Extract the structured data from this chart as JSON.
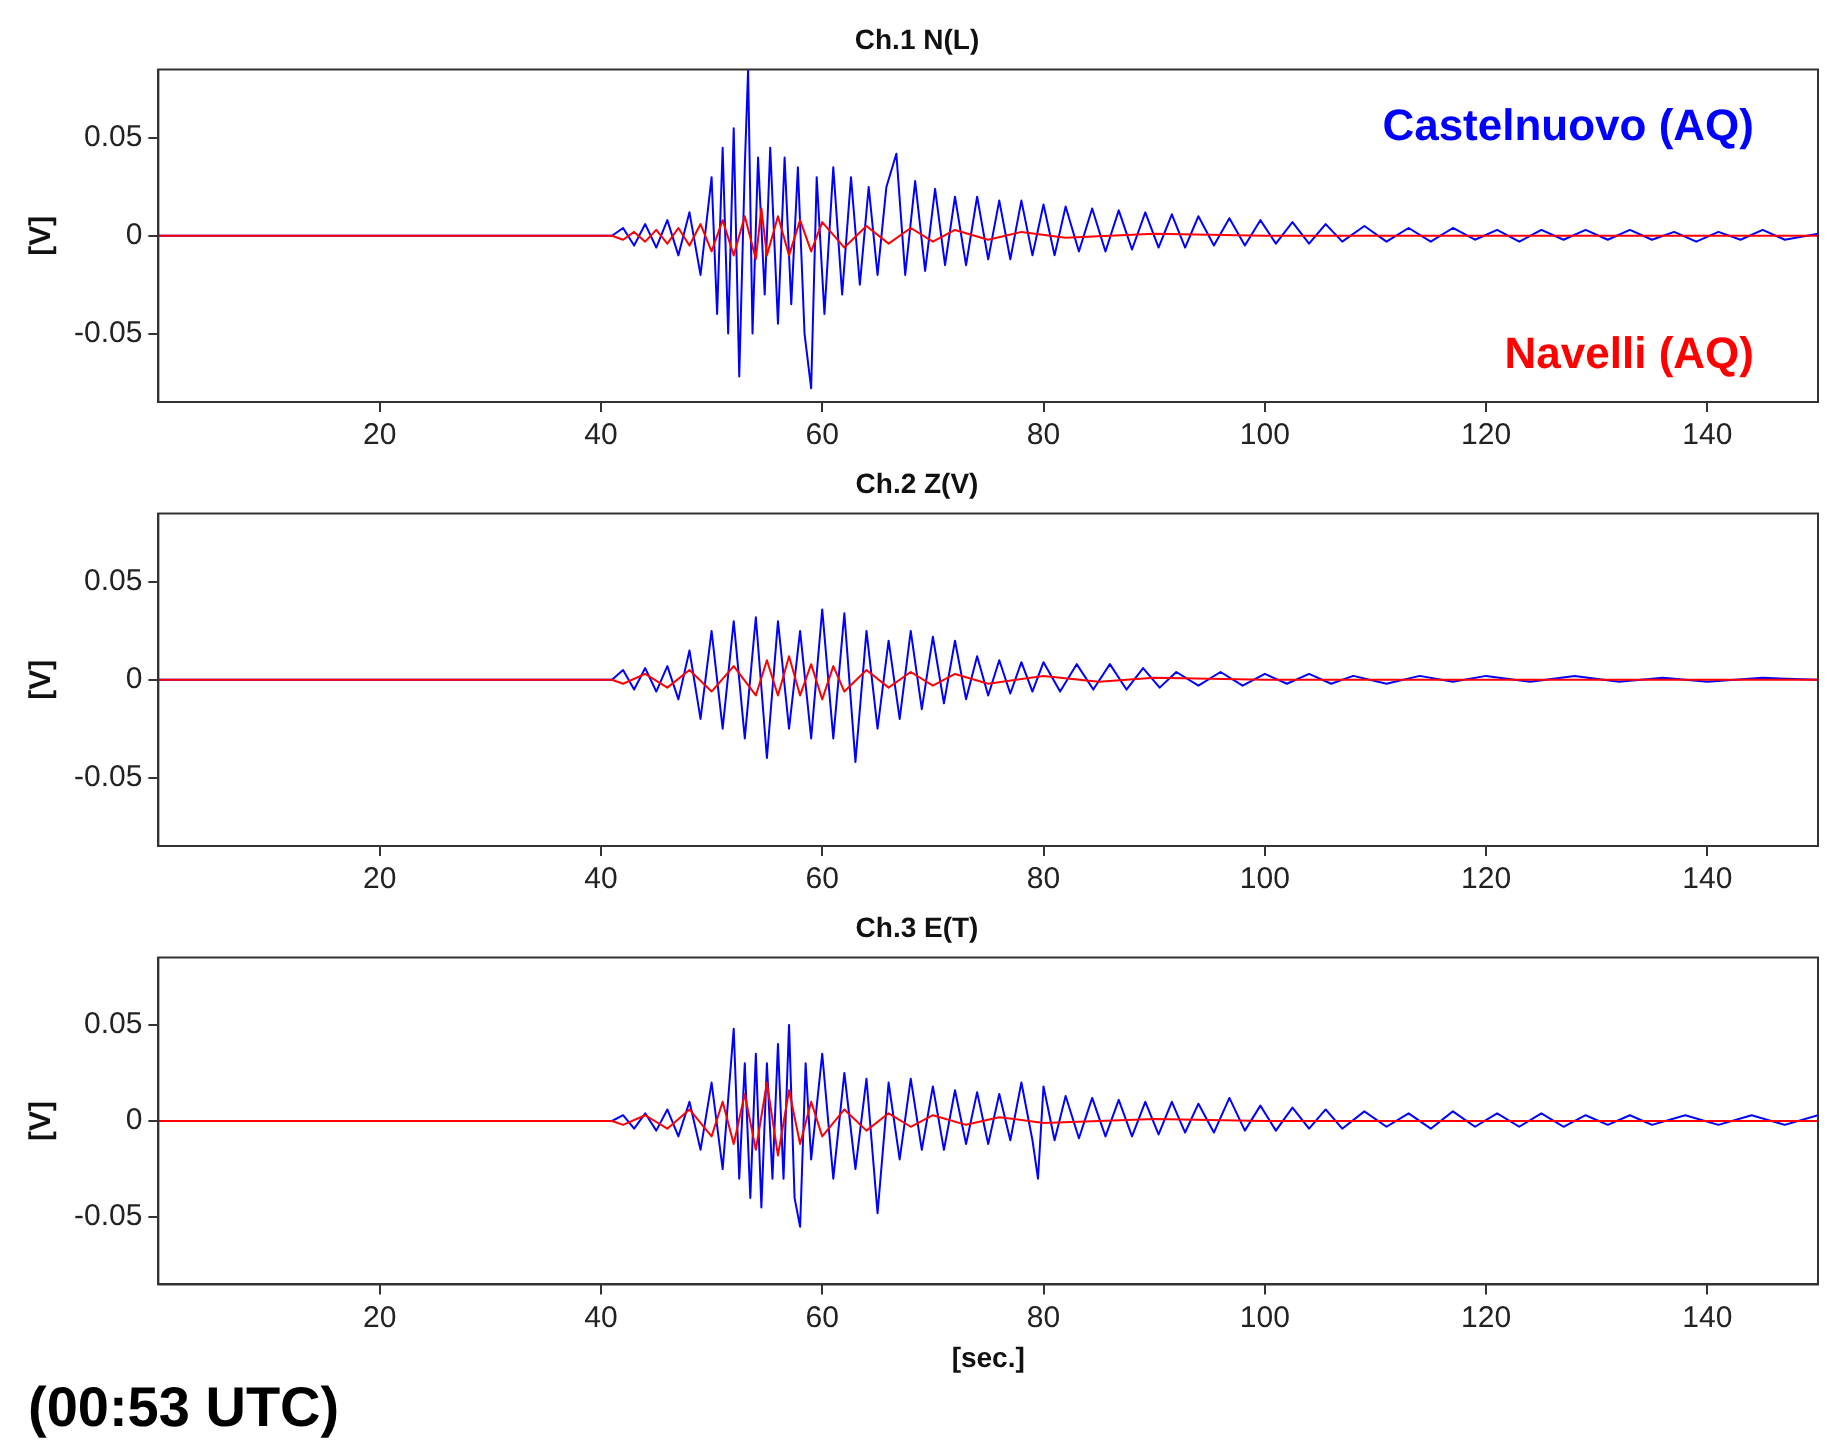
{
  "chart_data": [
    {
      "type": "line",
      "title": "Ch.1 N(L)",
      "ylabel": "[V]",
      "xlim": [
        0,
        150
      ],
      "ylim": [
        -0.085,
        0.085
      ],
      "xticks": [
        20,
        40,
        60,
        80,
        100,
        120,
        140
      ],
      "yticks": [
        -0.05,
        0,
        0.05
      ],
      "grid": false,
      "legend": false,
      "marker": "none",
      "line_style": "solid",
      "series": [
        {
          "name": "Castelnuovo (AQ)",
          "color": "#0000ff",
          "x": [
            0,
            41,
            42,
            43,
            44,
            45,
            46,
            47,
            48,
            49,
            50,
            50.5,
            51,
            51.5,
            52,
            52.5,
            53,
            53.3,
            53.7,
            54.2,
            54.8,
            55.3,
            56,
            56.6,
            57.2,
            57.8,
            58.4,
            59,
            59.5,
            60.2,
            61,
            61.8,
            62.6,
            63.4,
            64.2,
            65,
            65.8,
            66.7,
            67.5,
            68.4,
            69.3,
            70.2,
            71.1,
            72,
            73,
            74,
            75,
            76,
            77,
            78,
            79,
            80,
            81,
            82,
            83.2,
            84.4,
            85.6,
            86.8,
            88,
            89.2,
            90.4,
            91.6,
            92.8,
            94,
            95.4,
            96.8,
            98.2,
            99.6,
            101,
            102.5,
            104,
            105.5,
            107,
            109,
            111,
            113,
            115,
            117,
            119,
            121,
            123,
            125,
            127,
            129,
            131,
            133,
            135,
            137,
            139,
            141,
            143,
            145,
            147,
            150
          ],
          "values": [
            0,
            0,
            0.004,
            -0.005,
            0.006,
            -0.006,
            0.008,
            -0.01,
            0.012,
            -0.02,
            0.03,
            -0.04,
            0.045,
            -0.05,
            0.055,
            -0.072,
            0.035,
            0.085,
            -0.05,
            0.04,
            -0.03,
            0.045,
            -0.045,
            0.04,
            -0.035,
            0.035,
            -0.05,
            -0.078,
            0.03,
            -0.04,
            0.035,
            -0.03,
            0.03,
            -0.025,
            0.025,
            -0.02,
            0.025,
            0.042,
            -0.02,
            0.028,
            -0.018,
            0.024,
            -0.015,
            0.02,
            -0.015,
            0.02,
            -0.012,
            0.018,
            -0.012,
            0.018,
            -0.01,
            0.016,
            -0.01,
            0.015,
            -0.008,
            0.014,
            -0.008,
            0.013,
            -0.007,
            0.012,
            -0.006,
            0.011,
            -0.006,
            0.01,
            -0.005,
            0.009,
            -0.005,
            0.008,
            -0.004,
            0.007,
            -0.004,
            0.006,
            -0.003,
            0.005,
            -0.003,
            0.004,
            -0.003,
            0.004,
            -0.002,
            0.003,
            -0.003,
            0.003,
            -0.002,
            0.003,
            -0.002,
            0.003,
            -0.002,
            0.002,
            -0.003,
            0.002,
            -0.002,
            0.003,
            -0.002,
            0.001
          ]
        },
        {
          "name": "Navelli (AQ)",
          "color": "#ff0000",
          "x": [
            0,
            41,
            42,
            43,
            44,
            45,
            46,
            47,
            48,
            49,
            50,
            51,
            52,
            53,
            54,
            54.5,
            55,
            56,
            57,
            58,
            59,
            60,
            62,
            64,
            66,
            68,
            70,
            72,
            75,
            78,
            82,
            90,
            100,
            150
          ],
          "values": [
            0,
            0,
            -0.002,
            0.002,
            -0.003,
            0.003,
            -0.004,
            0.004,
            -0.005,
            0.006,
            -0.008,
            0.008,
            -0.01,
            0.01,
            -0.012,
            0.014,
            -0.01,
            0.01,
            -0.01,
            0.008,
            -0.008,
            0.007,
            -0.006,
            0.005,
            -0.004,
            0.004,
            -0.003,
            0.003,
            -0.002,
            0.002,
            -0.001,
            0.001,
            0,
            0
          ]
        }
      ]
    },
    {
      "type": "line",
      "title": "Ch.2 Z(V)",
      "ylabel": "[V]",
      "xlim": [
        0,
        150
      ],
      "ylim": [
        -0.085,
        0.085
      ],
      "xticks": [
        20,
        40,
        60,
        80,
        100,
        120,
        140
      ],
      "yticks": [
        -0.05,
        0,
        0.05
      ],
      "grid": false,
      "legend": false,
      "marker": "none",
      "line_style": "solid",
      "series": [
        {
          "color": "#0000ff",
          "x": [
            0,
            41,
            42,
            43,
            44,
            45,
            46,
            47,
            48,
            49,
            50,
            51,
            52,
            53,
            54,
            55,
            56,
            57,
            58,
            59,
            60,
            61,
            62,
            63,
            64,
            65,
            66,
            67,
            68,
            69,
            70,
            71,
            72,
            73,
            74,
            75,
            76,
            77,
            78,
            79,
            80,
            81.5,
            83,
            84.5,
            86,
            87.5,
            89,
            90.5,
            92,
            94,
            96,
            98,
            100,
            102,
            104,
            106,
            108,
            111,
            114,
            117,
            120,
            124,
            128,
            132,
            136,
            140,
            145,
            150
          ],
          "values": [
            0,
            0,
            0.005,
            -0.005,
            0.006,
            -0.006,
            0.007,
            -0.01,
            0.015,
            -0.02,
            0.025,
            -0.025,
            0.03,
            -0.03,
            0.032,
            -0.04,
            0.03,
            -0.025,
            0.025,
            -0.03,
            0.036,
            -0.03,
            0.034,
            -0.042,
            0.025,
            -0.025,
            0.02,
            -0.02,
            0.025,
            -0.015,
            0.022,
            -0.012,
            0.02,
            -0.01,
            0.012,
            -0.008,
            0.01,
            -0.007,
            0.009,
            -0.006,
            0.009,
            -0.006,
            0.008,
            -0.005,
            0.008,
            -0.005,
            0.006,
            -0.004,
            0.004,
            -0.003,
            0.004,
            -0.003,
            0.003,
            -0.002,
            0.003,
            -0.002,
            0.002,
            -0.002,
            0.002,
            -0.001,
            0.002,
            -0.001,
            0.002,
            -0.001,
            0.001,
            -0.001,
            0.001,
            0
          ]
        },
        {
          "color": "#ff0000",
          "x": [
            0,
            41,
            42,
            44,
            46,
            48,
            50,
            52,
            54,
            55,
            56,
            57,
            58,
            59,
            60,
            61,
            62,
            64,
            66,
            68,
            70,
            72,
            75,
            80,
            85,
            90,
            100,
            150
          ],
          "values": [
            0,
            0,
            -0.002,
            0.003,
            -0.004,
            0.005,
            -0.006,
            0.007,
            -0.008,
            0.01,
            -0.008,
            0.012,
            -0.008,
            0.008,
            -0.01,
            0.007,
            -0.006,
            0.005,
            -0.004,
            0.004,
            -0.003,
            0.003,
            -0.002,
            0.002,
            -0.001,
            0.001,
            0,
            0
          ]
        }
      ]
    },
    {
      "type": "line",
      "title": "Ch.3 E(T)",
      "ylabel": "[V]",
      "xlabel": "[sec.]",
      "xlim": [
        0,
        150
      ],
      "ylim": [
        -0.085,
        0.085
      ],
      "xticks": [
        20,
        40,
        60,
        80,
        100,
        120,
        140
      ],
      "yticks": [
        -0.05,
        0,
        0.05
      ],
      "grid": false,
      "legend": false,
      "marker": "none",
      "line_style": "solid",
      "annotations": [
        "(00:53 UTC)"
      ],
      "series": [
        {
          "color": "#0000ff",
          "x": [
            0,
            41,
            42,
            43,
            44,
            45,
            46,
            47,
            48,
            49,
            50,
            51,
            52,
            52.5,
            53,
            53.5,
            54,
            54.5,
            55,
            55.5,
            56,
            56.5,
            57,
            57.5,
            58,
            58.5,
            59,
            60,
            61,
            62,
            63,
            64,
            65,
            66,
            67,
            68,
            69,
            70,
            71,
            72,
            73,
            74,
            75,
            76,
            77,
            78,
            79,
            79.5,
            80,
            81,
            82,
            83.2,
            84.4,
            85.6,
            86.8,
            88,
            89.2,
            90.4,
            91.6,
            92.8,
            94,
            95.4,
            96.8,
            98.2,
            99.6,
            101,
            102.5,
            104,
            105.5,
            107,
            109,
            111,
            113,
            115,
            117,
            119,
            121,
            123,
            125,
            127,
            129,
            131,
            133,
            135,
            138,
            141,
            144,
            147,
            150
          ],
          "values": [
            0,
            0,
            0.003,
            -0.004,
            0.004,
            -0.005,
            0.006,
            -0.008,
            0.01,
            -0.015,
            0.02,
            -0.025,
            0.048,
            -0.03,
            0.03,
            -0.04,
            0.035,
            -0.045,
            0.03,
            -0.03,
            0.04,
            -0.03,
            0.05,
            -0.04,
            -0.055,
            0.03,
            -0.02,
            0.035,
            -0.03,
            0.025,
            -0.025,
            0.022,
            -0.048,
            0.02,
            -0.02,
            0.022,
            -0.015,
            0.018,
            -0.015,
            0.016,
            -0.012,
            0.015,
            -0.012,
            0.014,
            -0.01,
            0.02,
            -0.01,
            -0.03,
            0.018,
            -0.01,
            0.013,
            -0.009,
            0.012,
            -0.008,
            0.011,
            -0.008,
            0.01,
            -0.007,
            0.01,
            -0.006,
            0.009,
            -0.006,
            0.012,
            -0.005,
            0.008,
            -0.005,
            0.007,
            -0.004,
            0.006,
            -0.004,
            0.005,
            -0.003,
            0.004,
            -0.004,
            0.005,
            -0.003,
            0.004,
            -0.003,
            0.004,
            -0.003,
            0.003,
            -0.002,
            0.003,
            -0.002,
            0.003,
            -0.002,
            0.003,
            -0.002,
            0.003
          ]
        },
        {
          "color": "#ff0000",
          "x": [
            0,
            41,
            42,
            44,
            46,
            48,
            50,
            51,
            52,
            53,
            54,
            55,
            56,
            57,
            58,
            59,
            60,
            62,
            64,
            66,
            68,
            70,
            73,
            76,
            80,
            90,
            100,
            150
          ],
          "values": [
            0,
            0,
            -0.002,
            0.003,
            -0.004,
            0.006,
            -0.008,
            0.01,
            -0.012,
            0.014,
            -0.015,
            0.02,
            -0.018,
            0.016,
            -0.012,
            0.01,
            -0.008,
            0.006,
            -0.005,
            0.004,
            -0.003,
            0.003,
            -0.002,
            0.002,
            -0.001,
            0.001,
            0,
            0
          ]
        }
      ]
    }
  ]
}
